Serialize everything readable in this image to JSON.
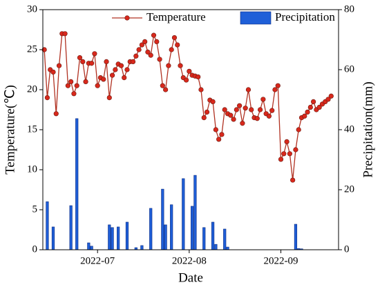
{
  "chart_data": {
    "type": "bar_line",
    "xlabel": "Date",
    "ylabel": "Temperature(℃)",
    "y2label": "Precipitation(mm)",
    "categories": [
      null,
      null,
      null,
      null,
      null,
      null,
      null,
      null,
      null,
      null,
      null,
      null,
      null,
      null,
      null,
      null,
      null,
      null,
      "2022-07",
      null,
      null,
      null,
      null,
      null,
      null,
      null,
      null,
      null,
      null,
      null,
      null,
      null,
      null,
      null,
      null,
      null,
      null,
      null,
      null,
      null,
      null,
      null,
      null,
      null,
      null,
      null,
      null,
      null,
      null,
      "2022-08",
      null,
      null,
      null,
      null,
      null,
      null,
      null,
      null,
      null,
      null,
      null,
      null,
      null,
      null,
      null,
      null,
      null,
      null,
      null,
      null,
      null,
      null,
      null,
      null,
      null,
      null,
      null,
      null,
      null,
      null,
      "2022-09",
      null,
      null,
      null,
      null,
      null,
      null,
      null,
      null,
      null,
      null,
      null,
      null,
      null,
      null,
      null,
      null,
      null,
      null,
      null
    ],
    "series": [
      {
        "name": "Temperature",
        "type": "line",
        "axis": "y",
        "color": "#b03020",
        "marker_color": "#d8281c",
        "values": [
          25,
          19,
          22.5,
          22.2,
          17,
          23,
          27,
          27,
          20.5,
          21,
          19.5,
          20.5,
          24,
          23.5,
          21,
          23.3,
          23.3,
          24.5,
          20.5,
          21.5,
          21.3,
          23.5,
          19,
          21.8,
          22.5,
          23.2,
          23,
          21.5,
          22.5,
          23.5,
          23.5,
          24.2,
          25,
          25.6,
          26,
          24.7,
          24.3,
          26.8,
          26,
          23.8,
          20.5,
          20,
          23,
          25,
          26.5,
          25.6,
          23,
          21.5,
          21.2,
          22.3,
          21.8,
          21.7,
          21.6,
          20,
          16.5,
          17.2,
          18.7,
          18.5,
          15,
          13.8,
          14.4,
          17.5,
          17,
          16.8,
          16.3,
          17.5,
          18,
          15.8,
          17.7,
          20,
          17.5,
          16.5,
          16.4,
          17.5,
          18.8,
          17,
          16.7,
          17.4,
          20,
          20.5,
          11.3,
          12,
          13.5,
          12,
          8.7,
          12.5,
          15,
          16.5,
          16.7,
          17.2,
          17.8,
          18.5,
          17.5,
          17.8,
          18.2,
          18.5,
          18.8,
          19.2,
          null,
          null
        ]
      },
      {
        "name": "Precipitation",
        "type": "bar",
        "axis": "y2",
        "color": "#1f5fd8",
        "values": [
          0,
          16,
          0,
          7.6,
          0,
          0,
          0,
          0,
          0,
          14.7,
          0,
          43.7,
          0,
          0,
          0,
          2.3,
          1.2,
          0,
          0,
          0,
          0,
          0,
          8.3,
          7.4,
          0,
          7.6,
          0,
          0,
          9.2,
          0,
          0,
          0.7,
          0,
          1.4,
          0,
          0,
          13.8,
          0,
          0,
          0,
          20.2,
          8.3,
          0,
          15,
          0,
          0,
          0,
          23.7,
          0,
          0,
          14.5,
          24.8,
          0,
          0,
          7.4,
          0,
          0,
          9.2,
          1.8,
          0,
          0,
          6.9,
          0.9,
          0,
          0,
          0,
          0,
          0,
          0,
          0,
          0,
          0,
          0,
          0,
          0,
          0,
          0,
          0,
          0,
          0,
          0,
          0,
          0,
          0,
          0,
          8.5,
          0.4,
          0.3,
          0,
          0,
          0,
          0,
          0,
          0,
          0,
          0,
          0,
          0,
          0,
          0
        ]
      }
    ],
    "ylim": [
      0,
      30
    ],
    "yticks": [
      0,
      5,
      10,
      15,
      20,
      25,
      30
    ],
    "y2lim": [
      0,
      80
    ],
    "y2ticks": [
      0,
      20,
      40,
      60,
      80
    ],
    "legend": "top"
  }
}
